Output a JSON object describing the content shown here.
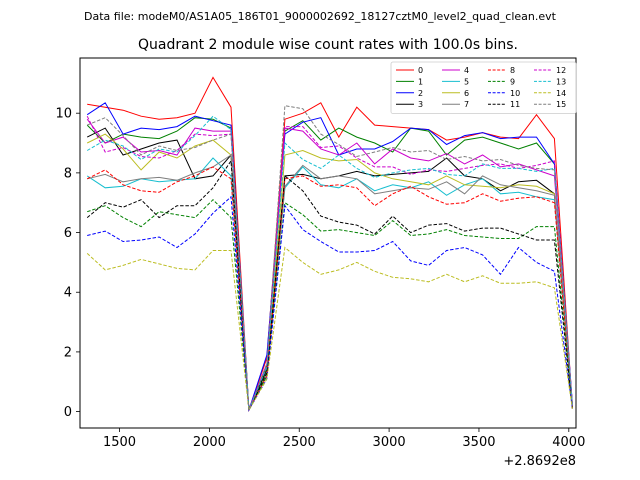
{
  "figure": {
    "suptitle": "Data file: modeM0/AS1A05_186T01_9000002692_18127cztM0_level2_quad_clean.evt"
  },
  "chart_data": {
    "type": "line",
    "title": "Quadrant 2 module wise count rates with 100.0s bins.",
    "xlabel": "",
    "ylabel": "",
    "x_offset_label": "+2.8692e8",
    "xlim": [
      1280,
      4040
    ],
    "ylim": [
      -0.55,
      11.85
    ],
    "x_ticks": [
      1500,
      2000,
      2500,
      3000,
      3500,
      4000
    ],
    "y_ticks": [
      0,
      2,
      4,
      6,
      8,
      10
    ],
    "grid": false,
    "legend": {
      "placement": "upper right",
      "columns": 4
    },
    "x": [
      1320,
      1420,
      1520,
      1620,
      1720,
      1820,
      1920,
      2020,
      2120,
      2220,
      2320,
      2420,
      2520,
      2620,
      2720,
      2820,
      2920,
      3020,
      3120,
      3220,
      3320,
      3420,
      3520,
      3620,
      3720,
      3820,
      3920,
      4020
    ],
    "series": [
      {
        "name": "0",
        "color": "#ff0000",
        "dash": "solid",
        "values": [
          10.3,
          10.2,
          10.1,
          9.9,
          9.8,
          9.85,
          10.0,
          11.2,
          10.2,
          0.05,
          1.8,
          9.8,
          10.0,
          10.35,
          9.2,
          10.2,
          9.6,
          9.55,
          9.5,
          9.45,
          9.1,
          9.2,
          9.35,
          9.2,
          9.15,
          9.95,
          9.15,
          0.15
        ]
      },
      {
        "name": "1",
        "color": "#008000",
        "dash": "solid",
        "values": [
          9.6,
          9.0,
          9.3,
          9.2,
          9.15,
          9.4,
          9.85,
          9.8,
          9.5,
          0.05,
          1.5,
          9.4,
          9.75,
          9.1,
          9.5,
          9.2,
          9.0,
          8.7,
          9.5,
          9.4,
          8.6,
          9.1,
          9.2,
          9.0,
          8.8,
          9.0,
          8.3,
          0.2
        ]
      },
      {
        "name": "2",
        "color": "#0000ff",
        "dash": "solid",
        "values": [
          9.95,
          10.35,
          9.3,
          9.5,
          9.45,
          9.55,
          9.9,
          9.75,
          9.6,
          0.05,
          1.9,
          9.3,
          9.7,
          9.85,
          8.6,
          8.8,
          8.8,
          9.05,
          9.5,
          9.45,
          8.95,
          9.25,
          9.35,
          9.15,
          9.2,
          9.2,
          8.3,
          0.25
        ]
      },
      {
        "name": "3",
        "color": "#000000",
        "dash": "solid",
        "values": [
          9.2,
          9.5,
          8.6,
          8.8,
          9.0,
          9.1,
          7.8,
          7.9,
          8.6,
          0.05,
          1.4,
          7.9,
          7.95,
          7.8,
          7.9,
          8.05,
          7.9,
          7.95,
          8.0,
          8.05,
          8.5,
          7.9,
          7.8,
          7.4,
          7.7,
          7.75,
          7.3,
          0.15
        ]
      },
      {
        "name": "4",
        "color": "#cc00cc",
        "dash": "solid",
        "values": [
          9.8,
          9.0,
          9.2,
          8.7,
          8.75,
          8.6,
          9.5,
          9.4,
          9.4,
          0.05,
          1.6,
          9.5,
          9.4,
          8.8,
          8.6,
          9.0,
          8.3,
          8.8,
          8.5,
          8.4,
          8.65,
          8.3,
          8.6,
          8.2,
          8.3,
          8.1,
          7.9,
          0.2
        ]
      },
      {
        "name": "5",
        "color": "#17becf",
        "dash": "solid",
        "values": [
          7.9,
          7.5,
          7.55,
          7.8,
          7.7,
          7.75,
          7.8,
          8.5,
          7.9,
          0.05,
          1.3,
          7.5,
          8.2,
          7.6,
          7.5,
          7.8,
          7.4,
          7.6,
          7.5,
          7.7,
          7.25,
          7.6,
          7.8,
          7.3,
          7.35,
          7.2,
          7.1,
          0.1
        ]
      },
      {
        "name": "6",
        "color": "#bcbd22",
        "dash": "solid",
        "values": [
          9.0,
          9.3,
          8.8,
          8.1,
          8.7,
          8.5,
          8.9,
          9.1,
          8.6,
          0.05,
          1.3,
          8.6,
          8.75,
          8.5,
          8.4,
          8.45,
          8.0,
          7.8,
          7.7,
          7.6,
          7.9,
          7.6,
          7.55,
          7.5,
          7.6,
          7.55,
          7.3,
          0.15
        ]
      },
      {
        "name": "7",
        "color": "#7f7f7f",
        "dash": "solid",
        "values": [
          7.8,
          7.95,
          7.7,
          7.8,
          7.85,
          7.75,
          8.0,
          8.2,
          8.6,
          0.05,
          1.3,
          7.55,
          8.25,
          7.8,
          7.9,
          7.8,
          7.3,
          7.4,
          7.5,
          7.45,
          7.7,
          7.3,
          7.9,
          7.6,
          7.5,
          7.4,
          7.25,
          0.1
        ]
      },
      {
        "name": "8",
        "color": "#ff0000",
        "dash": "dashed",
        "values": [
          7.8,
          8.1,
          7.6,
          7.4,
          7.35,
          7.7,
          7.9,
          8.2,
          7.8,
          0.05,
          1.2,
          7.8,
          7.9,
          7.55,
          7.6,
          7.5,
          6.9,
          7.3,
          7.55,
          7.2,
          6.95,
          7.0,
          7.3,
          7.05,
          7.15,
          7.2,
          7.0,
          0.1
        ]
      },
      {
        "name": "9",
        "color": "#008000",
        "dash": "dashed",
        "values": [
          6.7,
          6.9,
          6.5,
          6.2,
          6.7,
          6.6,
          6.5,
          7.1,
          6.5,
          0.05,
          1.2,
          7.0,
          6.6,
          6.05,
          6.1,
          6.0,
          5.9,
          6.4,
          5.9,
          5.95,
          6.1,
          5.9,
          5.85,
          5.8,
          5.8,
          6.2,
          6.2,
          0.15
        ]
      },
      {
        "name": "10",
        "color": "#0000ff",
        "dash": "dashed",
        "values": [
          5.9,
          6.05,
          5.7,
          5.75,
          5.85,
          5.5,
          5.95,
          6.65,
          7.2,
          0.05,
          1.1,
          6.9,
          6.1,
          5.7,
          5.35,
          5.35,
          5.4,
          5.7,
          5.05,
          4.9,
          5.4,
          5.5,
          5.25,
          4.6,
          5.5,
          5.0,
          4.7,
          0.1
        ]
      },
      {
        "name": "11",
        "color": "#000000",
        "dash": "dashed",
        "values": [
          6.5,
          7.0,
          6.85,
          7.1,
          6.5,
          6.9,
          6.9,
          7.5,
          8.4,
          0.05,
          1.3,
          7.9,
          7.4,
          6.55,
          6.35,
          6.25,
          5.95,
          6.55,
          6.0,
          6.25,
          6.3,
          6.05,
          6.15,
          6.15,
          5.95,
          5.75,
          5.75,
          0.1
        ]
      },
      {
        "name": "12",
        "color": "#cc00cc",
        "dash": "dashed",
        "values": [
          9.9,
          8.7,
          8.85,
          8.55,
          8.5,
          8.75,
          9.3,
          9.25,
          9.3,
          0.05,
          1.6,
          9.55,
          9.55,
          8.85,
          8.9,
          8.5,
          8.2,
          8.2,
          7.95,
          8.1,
          8.05,
          8.15,
          8.25,
          8.3,
          8.15,
          8.25,
          8.4,
          0.2
        ]
      },
      {
        "name": "13",
        "color": "#17becf",
        "dash": "dashed",
        "values": [
          8.75,
          9.1,
          8.9,
          8.45,
          8.8,
          8.7,
          9.25,
          9.9,
          9.45,
          0.05,
          1.5,
          9.0,
          8.45,
          8.15,
          8.6,
          8.15,
          7.85,
          8.0,
          8.1,
          8.15,
          7.95,
          7.9,
          8.3,
          8.15,
          8.15,
          8.05,
          8.15,
          0.2
        ]
      },
      {
        "name": "14",
        "color": "#bcbd22",
        "dash": "dashed",
        "values": [
          5.3,
          4.75,
          4.9,
          5.1,
          4.95,
          4.8,
          4.75,
          5.4,
          5.4,
          0.05,
          1.1,
          5.5,
          5.0,
          4.6,
          4.75,
          5.0,
          4.7,
          4.5,
          4.45,
          4.35,
          4.6,
          4.35,
          4.55,
          4.3,
          4.3,
          4.35,
          4.15,
          0.1
        ]
      },
      {
        "name": "15",
        "color": "#7f7f7f",
        "dash": "dashed",
        "values": [
          9.6,
          9.85,
          9.25,
          8.6,
          8.9,
          8.75,
          8.85,
          9.1,
          9.3,
          0.05,
          1.6,
          10.25,
          10.15,
          9.3,
          8.95,
          8.55,
          8.7,
          8.85,
          8.7,
          8.75,
          8.45,
          8.55,
          8.4,
          8.45,
          8.25,
          8.15,
          8.1,
          0.2
        ]
      }
    ]
  }
}
